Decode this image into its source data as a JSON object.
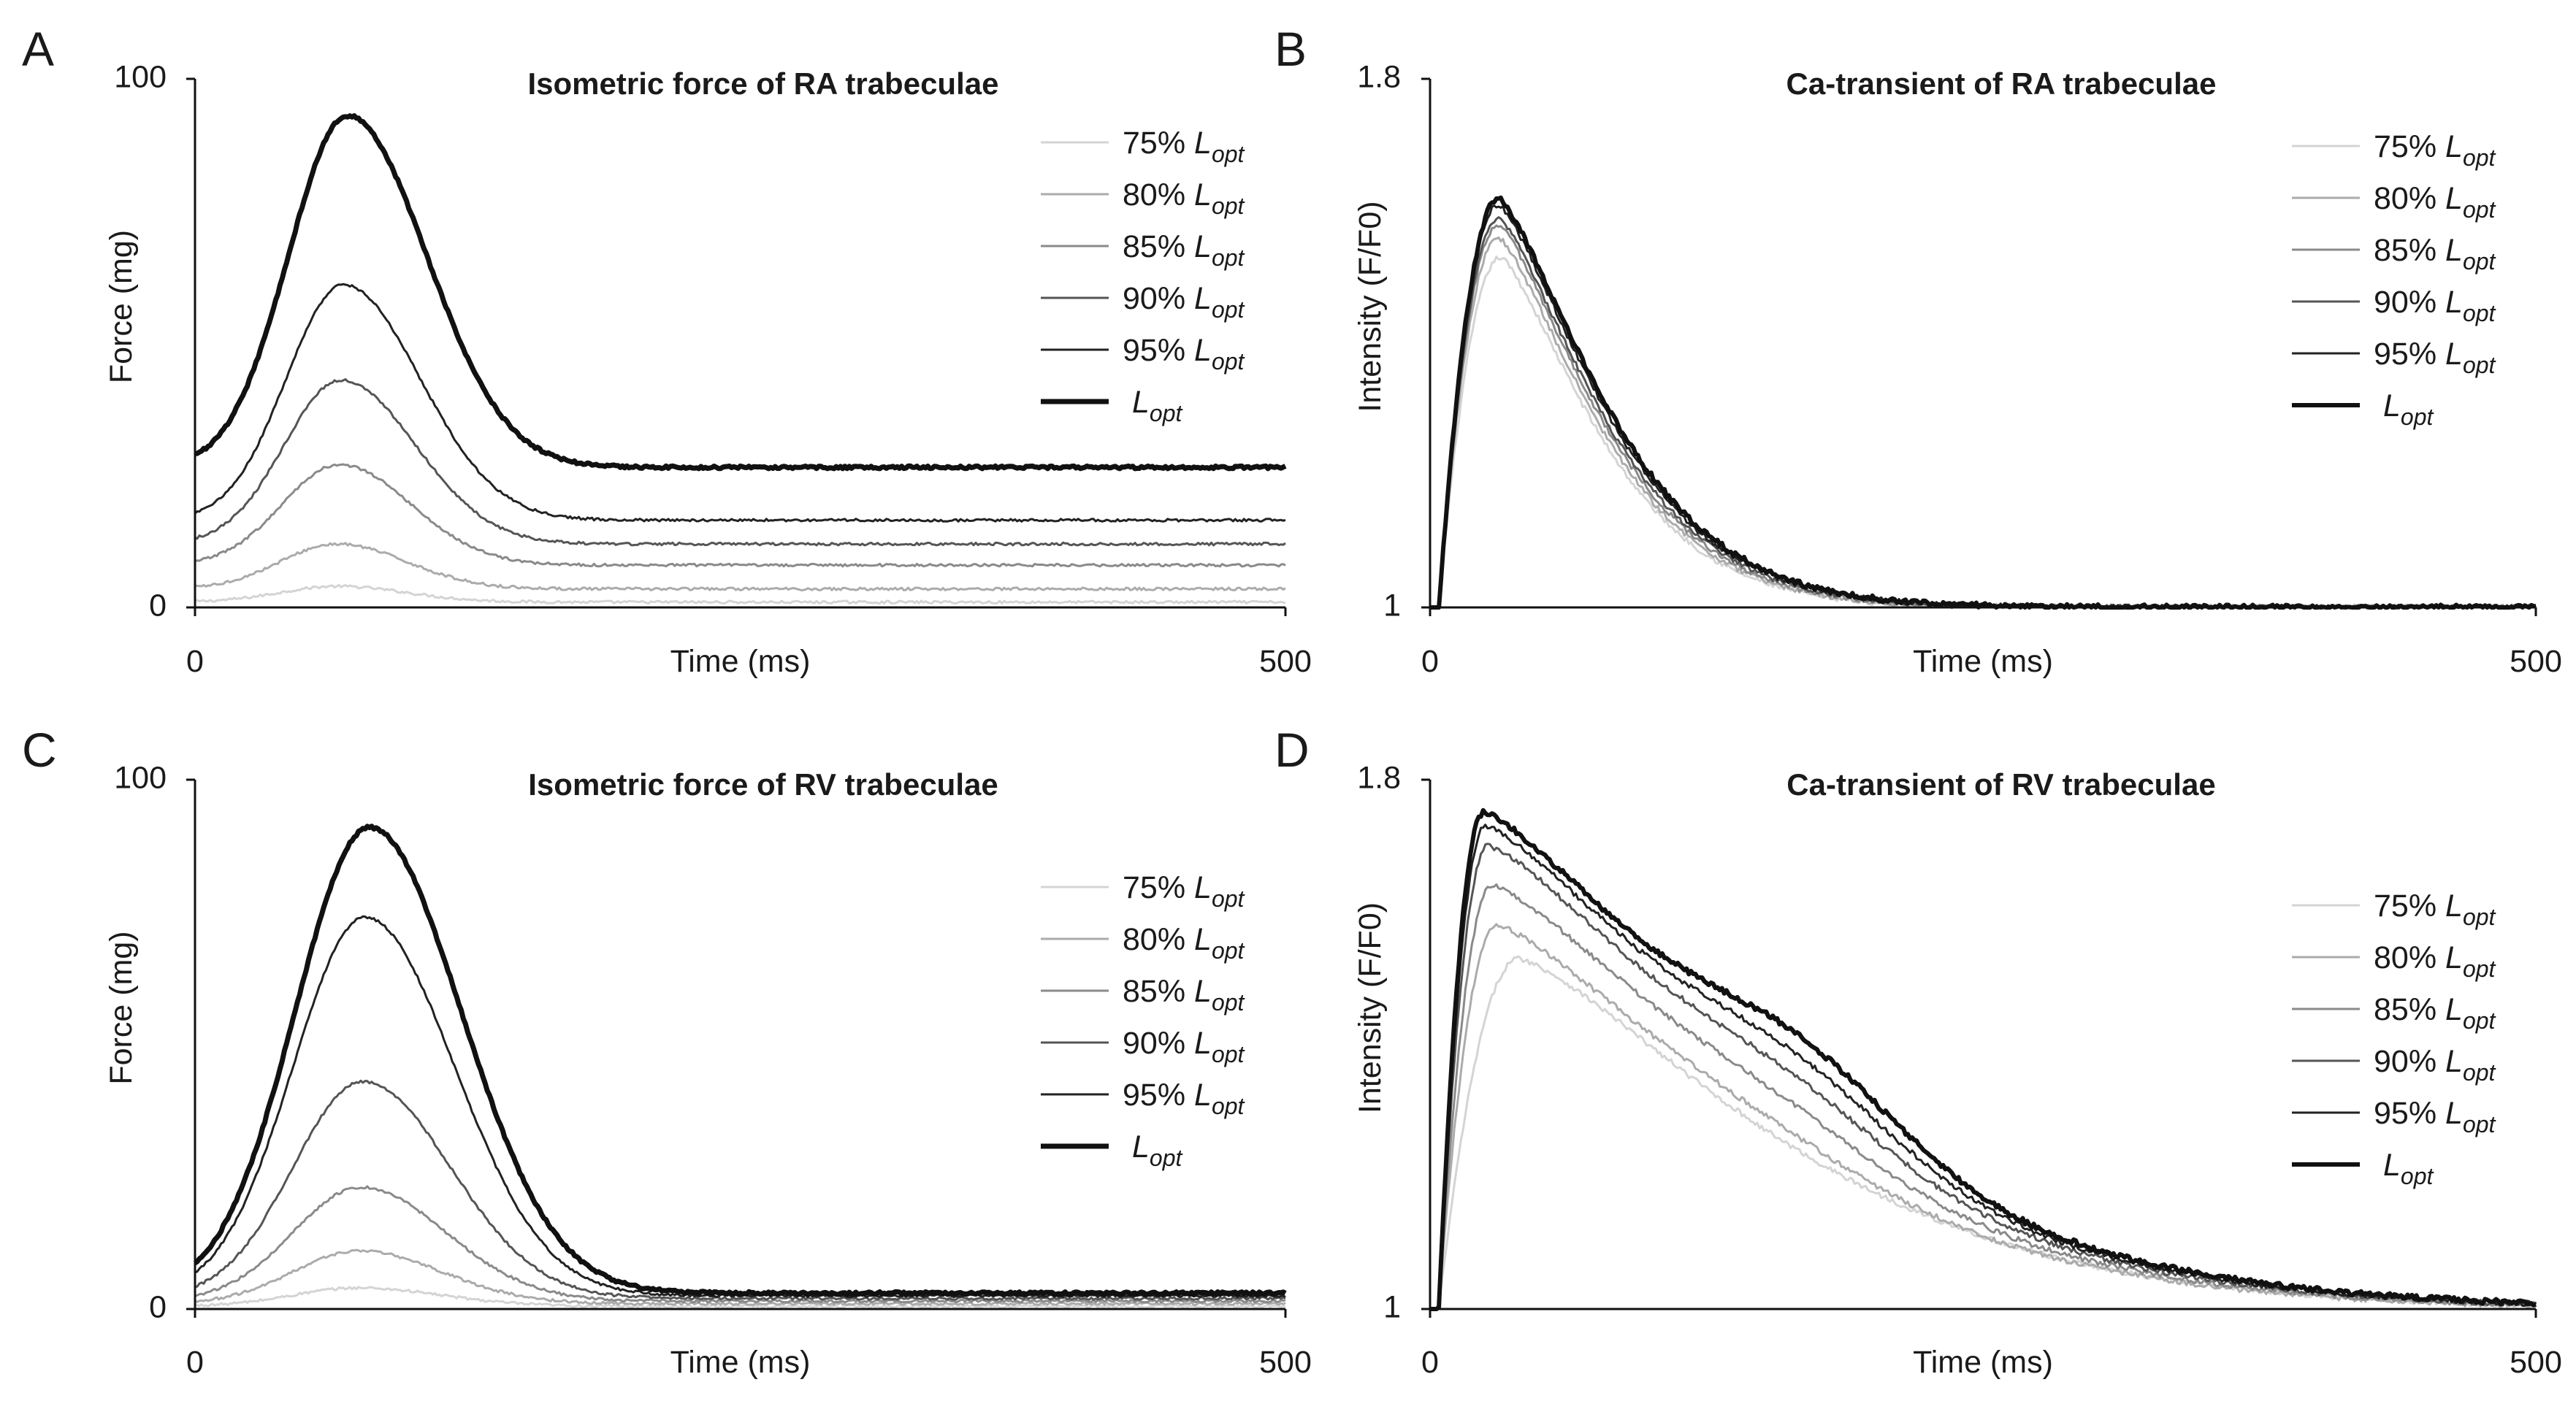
{
  "figure": {
    "panels": [
      "A",
      "B",
      "C",
      "D"
    ]
  },
  "chart_data": [
    {
      "panel": "A",
      "type": "line",
      "kind": "force",
      "title": "Isometric force of RA trabeculae",
      "xlabel": "Time (ms)",
      "ylabel": "Force (mg)",
      "xlim": [
        0,
        500
      ],
      "ylim": [
        0,
        100
      ],
      "x_ticks": [
        "0",
        "500"
      ],
      "y_ticks": [
        "0",
        "100"
      ],
      "legend_position": "top-right",
      "series": [
        {
          "name": "75% L_opt",
          "label_prefix": "75% ",
          "color": "#d4d4d4",
          "width": 3,
          "baseline": 1,
          "peak": 4,
          "peak_time": 65,
          "rise_width": 26,
          "decay_width": 32
        },
        {
          "name": "80% L_opt",
          "label_prefix": "80% ",
          "color": "#ababab",
          "width": 3,
          "baseline": 3.5,
          "peak": 12,
          "peak_time": 65,
          "rise_width": 26,
          "decay_width": 32
        },
        {
          "name": "85% L_opt",
          "label_prefix": "85% ",
          "color": "#8a8a8a",
          "width": 3,
          "baseline": 8,
          "peak": 27,
          "peak_time": 66,
          "rise_width": 26,
          "decay_width": 33
        },
        {
          "name": "90% L_opt",
          "label_prefix": "90% ",
          "color": "#555555",
          "width": 3,
          "baseline": 12,
          "peak": 43,
          "peak_time": 67,
          "rise_width": 26,
          "decay_width": 34
        },
        {
          "name": "95% L_opt",
          "label_prefix": "95% ",
          "color": "#222222",
          "width": 3,
          "baseline": 16.5,
          "peak": 61,
          "peak_time": 68,
          "rise_width": 26,
          "decay_width": 35
        },
        {
          "name": "L_opt",
          "label_prefix": "",
          "color": "#111111",
          "width": 7,
          "baseline": 26.5,
          "peak": 93,
          "peak_time": 70,
          "rise_width": 27,
          "decay_width": 36
        }
      ]
    },
    {
      "panel": "B",
      "type": "line",
      "kind": "calcium",
      "title": "Ca-transient of RA trabeculae",
      "xlabel": "Time (ms)",
      "ylabel": "Intensity (F/F0)",
      "xlim": [
        0,
        500
      ],
      "ylim": [
        1,
        1.8
      ],
      "x_ticks": [
        "0",
        "500"
      ],
      "y_ticks": [
        "1",
        "1.8"
      ],
      "legend_position": "top-right",
      "series": [
        {
          "name": "75% L_opt",
          "label_prefix": "75% ",
          "color": "#d4d4d4",
          "width": 3,
          "peak": 1.53,
          "peak_time": 32,
          "tau": 58,
          "shoulder": 0,
          "shoulder_time": 0
        },
        {
          "name": "80% L_opt",
          "label_prefix": "80% ",
          "color": "#ababab",
          "width": 3,
          "peak": 1.56,
          "peak_time": 31,
          "tau": 59,
          "shoulder": 0,
          "shoulder_time": 0
        },
        {
          "name": "85% L_opt",
          "label_prefix": "85% ",
          "color": "#8a8a8a",
          "width": 3,
          "peak": 1.58,
          "peak_time": 31,
          "tau": 60,
          "shoulder": 0,
          "shoulder_time": 0
        },
        {
          "name": "90% L_opt",
          "label_prefix": "90% ",
          "color": "#555555",
          "width": 3,
          "peak": 1.59,
          "peak_time": 31,
          "tau": 61,
          "shoulder": 0,
          "shoulder_time": 0
        },
        {
          "name": "95% L_opt",
          "label_prefix": "95% ",
          "color": "#222222",
          "width": 3,
          "peak": 1.61,
          "peak_time": 31,
          "tau": 62,
          "shoulder": 0,
          "shoulder_time": 0
        },
        {
          "name": "L_opt",
          "label_prefix": "",
          "color": "#111111",
          "width": 6,
          "peak": 1.62,
          "peak_time": 31,
          "tau": 63,
          "shoulder": 0,
          "shoulder_time": 0
        }
      ]
    },
    {
      "panel": "C",
      "type": "line",
      "kind": "force",
      "title": "Isometric force of RV trabeculae",
      "xlabel": "Time (ms)",
      "ylabel": "Force (mg)",
      "xlim": [
        0,
        500
      ],
      "ylim": [
        0,
        100
      ],
      "x_ticks": [
        "0",
        "500"
      ],
      "y_ticks": [
        "0",
        "100"
      ],
      "legend_position": "right",
      "series": [
        {
          "name": "75% L_opt",
          "label_prefix": "75% ",
          "color": "#d4d4d4",
          "width": 3,
          "baseline": 0.5,
          "peak": 4,
          "peak_time": 75,
          "rise_width": 30,
          "decay_width": 38
        },
        {
          "name": "80% L_opt",
          "label_prefix": "80% ",
          "color": "#ababab",
          "width": 3,
          "baseline": 1,
          "peak": 11,
          "peak_time": 75,
          "rise_width": 30,
          "decay_width": 38
        },
        {
          "name": "85% L_opt",
          "label_prefix": "85% ",
          "color": "#8a8a8a",
          "width": 3,
          "baseline": 1.5,
          "peak": 23,
          "peak_time": 76,
          "rise_width": 31,
          "decay_width": 39
        },
        {
          "name": "90% L_opt",
          "label_prefix": "90% ",
          "color": "#555555",
          "width": 3,
          "baseline": 2,
          "peak": 43,
          "peak_time": 77,
          "rise_width": 32,
          "decay_width": 40
        },
        {
          "name": "95% L_opt",
          "label_prefix": "95% ",
          "color": "#222222",
          "width": 3,
          "baseline": 2.5,
          "peak": 74,
          "peak_time": 78,
          "rise_width": 33,
          "decay_width": 41
        },
        {
          "name": "L_opt",
          "label_prefix": "",
          "color": "#111111",
          "width": 7,
          "baseline": 3,
          "peak": 91,
          "peak_time": 80,
          "rise_width": 34,
          "decay_width": 42
        }
      ]
    },
    {
      "panel": "D",
      "type": "line",
      "kind": "calcium",
      "title": "Ca-transient of RV trabeculae",
      "xlabel": "Time (ms)",
      "ylabel": "Intensity (F/F0)",
      "xlim": [
        0,
        500
      ],
      "ylim": [
        1,
        1.8
      ],
      "x_ticks": [
        "0",
        "500"
      ],
      "y_ticks": [
        "1",
        "1.8"
      ],
      "legend_position": "right",
      "series": [
        {
          "name": "75% L_opt",
          "label_prefix": "75% ",
          "color": "#d4d4d4",
          "width": 3,
          "peak": 1.53,
          "peak_time": 40,
          "tau": 150,
          "shoulder": 0.0,
          "shoulder_time": 150
        },
        {
          "name": "80% L_opt",
          "label_prefix": "80% ",
          "color": "#ababab",
          "width": 3,
          "peak": 1.58,
          "peak_time": 30,
          "tau": 150,
          "shoulder": 0.02,
          "shoulder_time": 155
        },
        {
          "name": "85% L_opt",
          "label_prefix": "85% ",
          "color": "#8a8a8a",
          "width": 3,
          "peak": 1.64,
          "peak_time": 28,
          "tau": 152,
          "shoulder": 0.04,
          "shoulder_time": 160
        },
        {
          "name": "90% L_opt",
          "label_prefix": "90% ",
          "color": "#555555",
          "width": 3,
          "peak": 1.7,
          "peak_time": 26,
          "tau": 154,
          "shoulder": 0.06,
          "shoulder_time": 165
        },
        {
          "name": "95% L_opt",
          "label_prefix": "95% ",
          "color": "#222222",
          "width": 3,
          "peak": 1.73,
          "peak_time": 25,
          "tau": 156,
          "shoulder": 0.08,
          "shoulder_time": 168
        },
        {
          "name": "L_opt",
          "label_prefix": "",
          "color": "#111111",
          "width": 6,
          "peak": 1.75,
          "peak_time": 24,
          "tau": 158,
          "shoulder": 0.1,
          "shoulder_time": 170
        }
      ]
    }
  ],
  "legend": {
    "L": "L",
    "sub": "opt"
  }
}
